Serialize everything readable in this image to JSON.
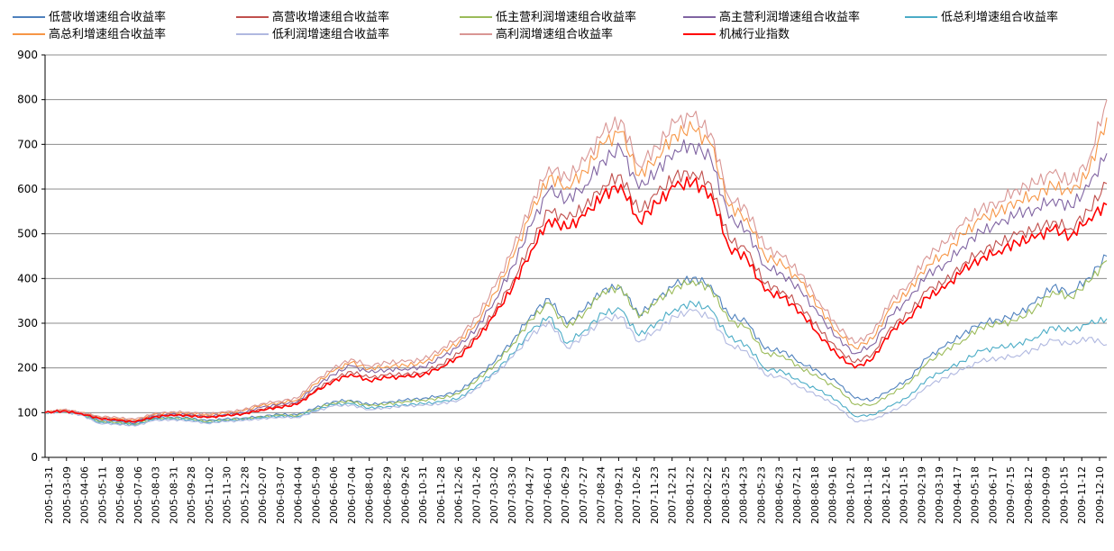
{
  "chart_data": {
    "type": "line",
    "title": "",
    "xlabel": "",
    "ylabel": "",
    "ylim": [
      0,
      900
    ],
    "yticks": [
      0,
      100,
      200,
      300,
      400,
      500,
      600,
      700,
      800,
      900
    ],
    "grid": "horizontal",
    "legend_position": "top",
    "xtick_labels": [
      "2005-01-31",
      "2005-03-09",
      "2005-04-06",
      "2005-05-11",
      "2005-06-08",
      "2005-07-06",
      "2005-08-03",
      "2005-08-31",
      "2005-09-28",
      "2005-11-02",
      "2005-11-30",
      "2005-12-28",
      "2006-02-07",
      "2006-03-07",
      "2006-04-04",
      "2006-05-09",
      "2006-06-06",
      "2006-07-04",
      "2006-08-01",
      "2006-08-29",
      "2006-09-26",
      "2006-10-31",
      "2006-11-28",
      "2006-12-26",
      "2007-01-26",
      "2007-03-02",
      "2007-03-30",
      "2007-04-27",
      "2007-06-01",
      "2007-06-29",
      "2007-07-27",
      "2007-08-24",
      "2007-09-21",
      "2007-10-26",
      "2007-11-23",
      "2007-12-21",
      "2008-01-22",
      "2008-02-22",
      "2008-03-25",
      "2008-04-23",
      "2008-05-23",
      "2008-06-23",
      "2008-07-21",
      "2008-08-18",
      "2008-09-16",
      "2008-10-21",
      "2008-11-18",
      "2008-12-16",
      "2009-01-15",
      "2009-02-19",
      "2009-03-19",
      "2009-04-17",
      "2009-05-18",
      "2009-06-17",
      "2009-07-15",
      "2009-08-12",
      "2009-09-09",
      "2009-10-15",
      "2009-11-12",
      "2009-12-10"
    ],
    "series": [
      {
        "name": "低营收增速组合收益率",
        "color": "#4f81bd",
        "values": [
          100,
          104,
          98,
          82,
          80,
          76,
          88,
          90,
          88,
          82,
          86,
          88,
          92,
          96,
          95,
          110,
          125,
          128,
          118,
          122,
          128,
          132,
          138,
          148,
          178,
          215,
          262,
          318,
          355,
          298,
          332,
          375,
          382,
          318,
          352,
          386,
          402,
          385,
          318,
          302,
          242,
          238,
          212,
          192,
          168,
          132,
          128,
          152,
          175,
          222,
          248,
          275,
          302,
          308,
          318,
          345,
          382,
          368,
          402,
          450
        ]
      },
      {
        "name": "高营收增速组合收益率",
        "color": "#c0504d",
        "values": [
          100,
          104,
          98,
          88,
          84,
          80,
          92,
          96,
          94,
          90,
          94,
          98,
          108,
          114,
          120,
          150,
          175,
          192,
          178,
          184,
          186,
          190,
          208,
          232,
          272,
          328,
          395,
          478,
          552,
          532,
          560,
          608,
          632,
          548,
          588,
          628,
          638,
          612,
          488,
          462,
          388,
          372,
          338,
          288,
          242,
          212,
          232,
          292,
          322,
          372,
          392,
          432,
          462,
          478,
          498,
          508,
          528,
          512,
          552,
          612
        ]
      },
      {
        "name": "低主营利润增速组合收益率",
        "color": "#9bbb59",
        "values": [
          100,
          103,
          97,
          80,
          78,
          74,
          86,
          88,
          86,
          80,
          84,
          86,
          90,
          94,
          93,
          108,
          122,
          125,
          115,
          119,
          125,
          128,
          132,
          142,
          172,
          208,
          254,
          308,
          345,
          290,
          325,
          372,
          380,
          312,
          348,
          380,
          395,
          378,
          305,
          290,
          232,
          228,
          200,
          178,
          155,
          118,
          118,
          142,
          165,
          210,
          238,
          262,
          292,
          298,
          305,
          332,
          372,
          358,
          392,
          440
        ]
      },
      {
        "name": "高主营利润增速组合收益率",
        "color": "#8064a2",
        "values": [
          100,
          105,
          99,
          88,
          85,
          81,
          93,
          97,
          96,
          92,
          96,
          100,
          112,
          118,
          124,
          158,
          185,
          205,
          190,
          196,
          198,
          202,
          222,
          248,
          290,
          352,
          428,
          518,
          598,
          576,
          608,
          665,
          690,
          600,
          640,
          688,
          700,
          668,
          535,
          508,
          428,
          410,
          372,
          318,
          268,
          232,
          252,
          318,
          352,
          408,
          432,
          472,
          505,
          520,
          545,
          555,
          578,
          560,
          605,
          680
        ]
      },
      {
        "name": "低总利增速组合收益率",
        "color": "#4bacc6",
        "values": [
          100,
          102,
          96,
          78,
          76,
          72,
          84,
          86,
          84,
          78,
          82,
          84,
          88,
          92,
          91,
          105,
          118,
          120,
          110,
          114,
          118,
          120,
          124,
          132,
          160,
          192,
          232,
          282,
          315,
          255,
          285,
          322,
          330,
          272,
          302,
          332,
          345,
          330,
          268,
          252,
          198,
          192,
          168,
          150,
          128,
          92,
          95,
          115,
          135,
          175,
          195,
          215,
          238,
          245,
          252,
          268,
          292,
          282,
          298,
          310
        ]
      },
      {
        "name": "高总利增速组合收益率",
        "color": "#f79646",
        "values": [
          100,
          106,
          100,
          90,
          87,
          83,
          95,
          100,
          99,
          95,
          99,
          104,
          116,
          122,
          128,
          164,
          192,
          212,
          198,
          204,
          206,
          210,
          232,
          258,
          302,
          368,
          448,
          545,
          628,
          605,
          640,
          700,
          728,
          630,
          672,
          722,
          735,
          700,
          562,
          535,
          450,
          430,
          392,
          335,
          282,
          245,
          265,
          335,
          372,
          430,
          455,
          498,
          532,
          548,
          575,
          585,
          608,
          590,
          638,
          760
        ]
      },
      {
        "name": "低利润增速组合收益率",
        "color": "#b0b8e0",
        "values": [
          100,
          101,
          95,
          76,
          74,
          70,
          82,
          84,
          82,
          76,
          80,
          82,
          86,
          90,
          89,
          102,
          115,
          117,
          107,
          111,
          115,
          116,
          120,
          128,
          155,
          186,
          225,
          272,
          305,
          245,
          272,
          308,
          315,
          258,
          286,
          315,
          328,
          312,
          252,
          238,
          185,
          178,
          155,
          138,
          115,
          80,
          84,
          102,
          122,
          160,
          178,
          196,
          215,
          222,
          228,
          242,
          262,
          252,
          268,
          252
        ]
      },
      {
        "name": "高利润增速组合收益率",
        "color": "#d99694",
        "values": [
          100,
          107,
          101,
          92,
          89,
          85,
          97,
          102,
          101,
          97,
          101,
          106,
          120,
          126,
          132,
          170,
          198,
          220,
          205,
          212,
          214,
          218,
          242,
          268,
          314,
          382,
          465,
          565,
          650,
          625,
          662,
          725,
          755,
          652,
          695,
          748,
          762,
          725,
          582,
          555,
          468,
          448,
          410,
          350,
          295,
          255,
          278,
          350,
          388,
          450,
          478,
          520,
          555,
          572,
          600,
          612,
          635,
          615,
          665,
          800
        ]
      },
      {
        "name": "机械行业指数",
        "color": "#ff0000",
        "values": [
          100,
          104,
          98,
          87,
          83,
          79,
          90,
          95,
          93,
          89,
          93,
          97,
          106,
          112,
          118,
          146,
          170,
          186,
          172,
          178,
          180,
          184,
          202,
          225,
          265,
          318,
          382,
          462,
          532,
          512,
          540,
          585,
          610,
          528,
          568,
          605,
          615,
          590,
          470,
          445,
          372,
          358,
          325,
          275,
          230,
          200,
          220,
          282,
          312,
          358,
          378,
          418,
          445,
          462,
          480,
          490,
          510,
          495,
          535,
          565
        ]
      }
    ]
  }
}
